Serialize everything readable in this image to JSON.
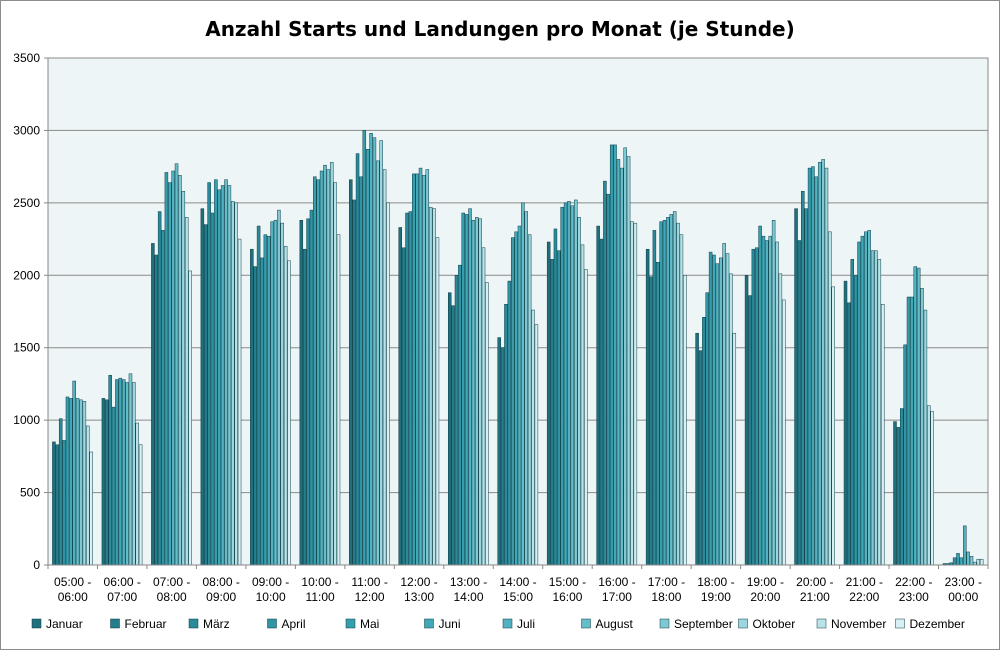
{
  "chart_data": {
    "type": "bar",
    "title": "Anzahl Starts und Landungen pro Monat (je Stunde)",
    "xlabel": "",
    "ylabel": "",
    "ylim": [
      0,
      3500
    ],
    "yticks": [
      0,
      500,
      1000,
      1500,
      2000,
      2500,
      3000,
      3500
    ],
    "grid": true,
    "legend_position": "bottom",
    "categories": [
      [
        "05:00 -",
        "06:00"
      ],
      [
        "06:00 -",
        "07:00"
      ],
      [
        "07:00 -",
        "08:00"
      ],
      [
        "08:00 -",
        "09:00"
      ],
      [
        "09:00 -",
        "10:00"
      ],
      [
        "10:00 -",
        "11:00"
      ],
      [
        "11:00 -",
        "12:00"
      ],
      [
        "12:00 -",
        "13:00"
      ],
      [
        "13:00 -",
        "14:00"
      ],
      [
        "14:00 -",
        "15:00"
      ],
      [
        "15:00 -",
        "16:00"
      ],
      [
        "16:00 -",
        "17:00"
      ],
      [
        "17:00 -",
        "18:00"
      ],
      [
        "18:00 -",
        "19:00"
      ],
      [
        "19:00 -",
        "20:00"
      ],
      [
        "20:00 -",
        "21:00"
      ],
      [
        "21:00 -",
        "22:00"
      ],
      [
        "22:00 -",
        "23:00"
      ],
      [
        "23:00 -",
        "00:00"
      ]
    ],
    "series": [
      {
        "name": "Januar",
        "color": "#1f6f7c",
        "values": [
          850,
          1150,
          2220,
          2460,
          2180,
          2380,
          2660,
          2330,
          1880,
          1570,
          2230,
          2340,
          2180,
          1600,
          2000,
          2460,
          1960,
          990,
          10
        ]
      },
      {
        "name": "Februar",
        "color": "#257d8c",
        "values": [
          830,
          1140,
          2140,
          2350,
          2060,
          2180,
          2520,
          2190,
          1790,
          1500,
          2110,
          2250,
          1990,
          1480,
          1860,
          2240,
          1810,
          950,
          10
        ]
      },
      {
        "name": "März",
        "color": "#2a8a9a",
        "values": [
          1010,
          1310,
          2440,
          2640,
          2340,
          2390,
          2840,
          2430,
          2000,
          1800,
          2320,
          2650,
          2310,
          1710,
          2180,
          2580,
          2110,
          1080,
          15
        ]
      },
      {
        "name": "April",
        "color": "#3094a4",
        "values": [
          860,
          1090,
          2310,
          2430,
          2120,
          2450,
          2680,
          2440,
          2070,
          1960,
          2170,
          2560,
          2090,
          1880,
          2190,
          2460,
          2000,
          1520,
          50
        ]
      },
      {
        "name": "Mai",
        "color": "#379eae",
        "values": [
          1160,
          1280,
          2710,
          2660,
          2280,
          2680,
          3000,
          2700,
          2430,
          2260,
          2470,
          2900,
          2370,
          2160,
          2340,
          2740,
          2230,
          1850,
          80
        ]
      },
      {
        "name": "Juni",
        "color": "#41a8b8",
        "values": [
          1150,
          1290,
          2640,
          2590,
          2270,
          2660,
          2870,
          2700,
          2420,
          2300,
          2500,
          2900,
          2380,
          2140,
          2270,
          2750,
          2270,
          1850,
          50
        ]
      },
      {
        "name": "Juli",
        "color": "#52b2c1",
        "values": [
          1270,
          1280,
          2720,
          2620,
          2370,
          2720,
          2980,
          2740,
          2460,
          2340,
          2510,
          2800,
          2400,
          2080,
          2240,
          2680,
          2300,
          2060,
          270
        ]
      },
      {
        "name": "August",
        "color": "#66bdca",
        "values": [
          1150,
          1260,
          2770,
          2660,
          2380,
          2760,
          2950,
          2690,
          2380,
          2500,
          2480,
          2740,
          2420,
          2120,
          2270,
          2780,
          2310,
          2050,
          90
        ]
      },
      {
        "name": "September",
        "color": "#80c9d4",
        "values": [
          1140,
          1320,
          2690,
          2620,
          2450,
          2730,
          2790,
          2730,
          2400,
          2440,
          2520,
          2880,
          2440,
          2220,
          2380,
          2800,
          2170,
          1910,
          60
        ]
      },
      {
        "name": "Oktober",
        "color": "#9cd6de",
        "values": [
          1130,
          1260,
          2580,
          2510,
          2360,
          2780,
          2930,
          2470,
          2390,
          2280,
          2400,
          2820,
          2360,
          2150,
          2230,
          2740,
          2170,
          1760,
          20
        ]
      },
      {
        "name": "November",
        "color": "#bae3e9",
        "values": [
          960,
          980,
          2400,
          2500,
          2200,
          2640,
          2730,
          2460,
          2190,
          1760,
          2210,
          2370,
          2280,
          2010,
          2010,
          2300,
          2110,
          1100,
          40
        ]
      },
      {
        "name": "Dezember",
        "color": "#d8f0f3",
        "values": [
          780,
          830,
          2030,
          2250,
          2100,
          2280,
          2500,
          2260,
          1950,
          1660,
          2040,
          2360,
          2000,
          1600,
          1830,
          1920,
          1800,
          1060,
          40
        ]
      }
    ]
  }
}
